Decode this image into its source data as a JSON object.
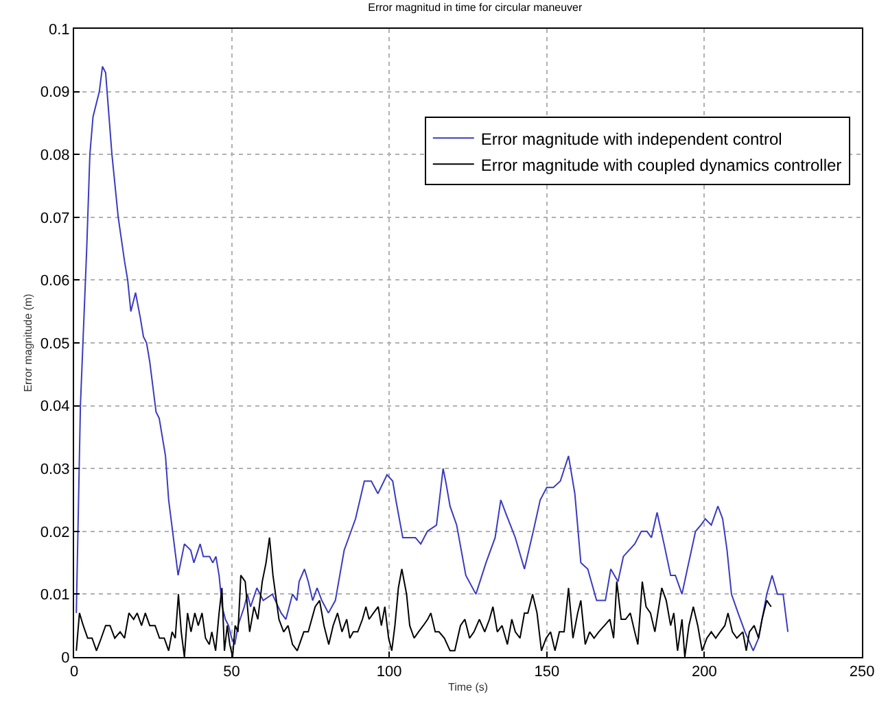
{
  "chart_data": {
    "type": "line",
    "title": "Error magnitud in time for circular maneuver",
    "xlabel": "Time (s)",
    "ylabel": "Error magnitude (m)",
    "xlim": [
      0,
      250
    ],
    "xticks": [
      0,
      50,
      100,
      150,
      200,
      250
    ],
    "ylim": [
      0,
      0.1
    ],
    "yticks": [
      0,
      0.01,
      0.02,
      0.03,
      0.04,
      0.05,
      0.06,
      0.07,
      0.08,
      0.09,
      0.1
    ],
    "grid": true,
    "legend": "top right",
    "line_style": "solid",
    "marker": "none",
    "series": [
      {
        "name": "Error magnitude with independent control",
        "color": "#3a3ac0",
        "x": [
          0.7,
          2,
          4,
          5,
          6,
          8,
          9,
          10,
          12,
          14,
          16,
          17,
          18,
          19.5,
          21,
          22,
          23,
          24,
          26,
          27,
          29,
          30,
          31,
          33,
          35,
          37,
          38,
          40,
          41,
          43,
          44,
          45,
          46,
          47,
          48,
          49,
          50,
          51,
          52,
          54,
          55,
          56,
          58,
          60,
          62.9,
          65.7,
          67.2,
          69.3,
          70.7,
          71.4,
          73.1,
          74.3,
          75.7,
          77.1,
          78.6,
          80.7,
          82.9,
          85.7,
          89.3,
          92.1,
          94.3,
          96.4,
          99.3,
          101.1,
          102.1,
          104.3,
          106.4,
          108.3,
          110,
          112.1,
          115,
          117.1,
          117.9,
          119.3,
          121.4,
          124.3,
          127.5,
          130.7,
          133.6,
          135.4,
          136.9,
          140,
          142.9,
          145.7,
          147.9,
          150,
          152.1,
          154.3,
          156.9,
          158.9,
          160.8,
          163,
          165.8,
          168.6,
          170.3,
          172.6,
          174.3,
          177.9,
          180,
          181.8,
          183.2,
          185,
          187.2,
          189.3,
          190.8,
          192.9,
          194.6,
          197.2,
          198.9,
          200.3,
          202.2,
          204.3,
          205.8,
          207.2,
          208.6,
          210.7,
          212.9,
          215.5,
          217.2,
          219.8,
          221.5,
          223.2,
          225,
          226.5
        ],
        "values": [
          0.007,
          0.04,
          0.065,
          0.08,
          0.086,
          0.09,
          0.094,
          0.093,
          0.08,
          0.07,
          0.063,
          0.06,
          0.055,
          0.058,
          0.054,
          0.051,
          0.05,
          0.047,
          0.039,
          0.038,
          0.032,
          0.025,
          0.021,
          0.013,
          0.018,
          0.017,
          0.015,
          0.018,
          0.016,
          0.016,
          0.015,
          0.016,
          0.013,
          0.008,
          0.006,
          0.005,
          0.003,
          0.002,
          0.005,
          0.008,
          0.01,
          0.008,
          0.011,
          0.009,
          0.01,
          0.007,
          0.006,
          0.01,
          0.009,
          0.012,
          0.014,
          0.012,
          0.009,
          0.011,
          0.009,
          0.007,
          0.009,
          0.017,
          0.022,
          0.028,
          0.028,
          0.026,
          0.029,
          0.028,
          0.025,
          0.019,
          0.019,
          0.019,
          0.018,
          0.02,
          0.021,
          0.03,
          0.028,
          0.024,
          0.021,
          0.013,
          0.01,
          0.015,
          0.019,
          0.025,
          0.023,
          0.019,
          0.014,
          0.02,
          0.025,
          0.027,
          0.027,
          0.028,
          0.032,
          0.026,
          0.015,
          0.014,
          0.009,
          0.009,
          0.014,
          0.012,
          0.016,
          0.018,
          0.02,
          0.02,
          0.019,
          0.023,
          0.018,
          0.013,
          0.013,
          0.01,
          0.014,
          0.02,
          0.021,
          0.022,
          0.021,
          0.024,
          0.022,
          0.017,
          0.01,
          0.007,
          0.004,
          0.001,
          0.003,
          0.01,
          0.013,
          0.01,
          0.01,
          0.004
        ]
      },
      {
        "name": "Error magnitude with coupled dynamics controller",
        "color": "#000000",
        "x": [
          0.7,
          1.7,
          2.9,
          4.3,
          5.7,
          7.1,
          8.6,
          10,
          11.4,
          12.9,
          14.6,
          16,
          17.4,
          18.9,
          20,
          21.4,
          22.6,
          24,
          25.7,
          27.1,
          28.6,
          30,
          31.1,
          32.1,
          33.1,
          34,
          35,
          36,
          37.1,
          38.3,
          39.4,
          40.6,
          41.7,
          42.9,
          43.7,
          44.9,
          46,
          46.9,
          47.7,
          48.6,
          49.4,
          50.3,
          51.1,
          52,
          52.9,
          54.3,
          55.7,
          57.1,
          58.3,
          59.7,
          60.9,
          62,
          63.1,
          65,
          66.5,
          67.9,
          69.3,
          70.8,
          72.9,
          74.3,
          76.5,
          77.9,
          79.3,
          80.8,
          82.2,
          83.6,
          85,
          86.5,
          87.5,
          88.6,
          90,
          91.5,
          92.6,
          93.6,
          95,
          96.5,
          97.5,
          98.6,
          99.8,
          100.8,
          101.8,
          102.9,
          104,
          105.5,
          106.5,
          107.9,
          109.3,
          110.8,
          112.2,
          113.2,
          114.6,
          115.8,
          117.5,
          119.3,
          120.8,
          122.6,
          124,
          125.5,
          126.9,
          128.6,
          130.3,
          131.8,
          132.9,
          134.3,
          135.8,
          137.5,
          138.9,
          140,
          141.5,
          142.9,
          144,
          145.5,
          146.9,
          148.3,
          149.8,
          151.2,
          152.6,
          154,
          155.5,
          156.9,
          158.3,
          159.8,
          160.8,
          162.2,
          163.6,
          165,
          166.5,
          168.3,
          170,
          171.2,
          172.2,
          173.6,
          175,
          176.5,
          177.9,
          178.9,
          180.3,
          181.5,
          182.9,
          184.3,
          186.5,
          187.9,
          189.3,
          190.3,
          191.5,
          192.9,
          193.8,
          195.1,
          196.5,
          197.9,
          199.3,
          200.8,
          202.2,
          203.6,
          205,
          206.5,
          207.5,
          208.9,
          210.3,
          212.2,
          213.3,
          214.3,
          215.8,
          217.2,
          218.3,
          219.8,
          221.2
        ],
        "values": [
          0.001,
          0.007,
          0.005,
          0.003,
          0.003,
          0.001,
          0.003,
          0.005,
          0.005,
          0.003,
          0.004,
          0.003,
          0.007,
          0.006,
          0.007,
          0.005,
          0.007,
          0.005,
          0.005,
          0.003,
          0.003,
          0.001,
          0.004,
          0.003,
          0.01,
          0.004,
          0,
          0.007,
          0.004,
          0.007,
          0.005,
          0.007,
          0.003,
          0.002,
          0.004,
          0.001,
          0.007,
          0.011,
          0.001,
          0.005,
          0.002,
          0,
          0.005,
          0.004,
          0.013,
          0.012,
          0.004,
          0.008,
          0.006,
          0.012,
          0.015,
          0.019,
          0.013,
          0.006,
          0.004,
          0.005,
          0.002,
          0.001,
          0.004,
          0.004,
          0.008,
          0.009,
          0.005,
          0.002,
          0.005,
          0.007,
          0.004,
          0.006,
          0.003,
          0.004,
          0.004,
          0.006,
          0.008,
          0.006,
          0.007,
          0.008,
          0.005,
          0.008,
          0.003,
          0.001,
          0.005,
          0.011,
          0.014,
          0.01,
          0.005,
          0.003,
          0.004,
          0.005,
          0.006,
          0.007,
          0.004,
          0.004,
          0.003,
          0.001,
          0.001,
          0.005,
          0.006,
          0.003,
          0.004,
          0.006,
          0.004,
          0.006,
          0.008,
          0.004,
          0.005,
          0.002,
          0.006,
          0.004,
          0.003,
          0.007,
          0.007,
          0.01,
          0.007,
          0.001,
          0.003,
          0.004,
          0.001,
          0.004,
          0.004,
          0.011,
          0.003,
          0.007,
          0.009,
          0.002,
          0.004,
          0.003,
          0.004,
          0.005,
          0.006,
          0.003,
          0.012,
          0.006,
          0.006,
          0.007,
          0.004,
          0.002,
          0.012,
          0.008,
          0.007,
          0.004,
          0.011,
          0.009,
          0.005,
          0.007,
          0.001,
          0.006,
          0,
          0.005,
          0.008,
          0.005,
          0.001,
          0.003,
          0.004,
          0.003,
          0.004,
          0.005,
          0.007,
          0.004,
          0.003,
          0.004,
          0.001,
          0.004,
          0.005,
          0.003,
          0.006,
          0.009,
          0.008
        ]
      }
    ]
  }
}
